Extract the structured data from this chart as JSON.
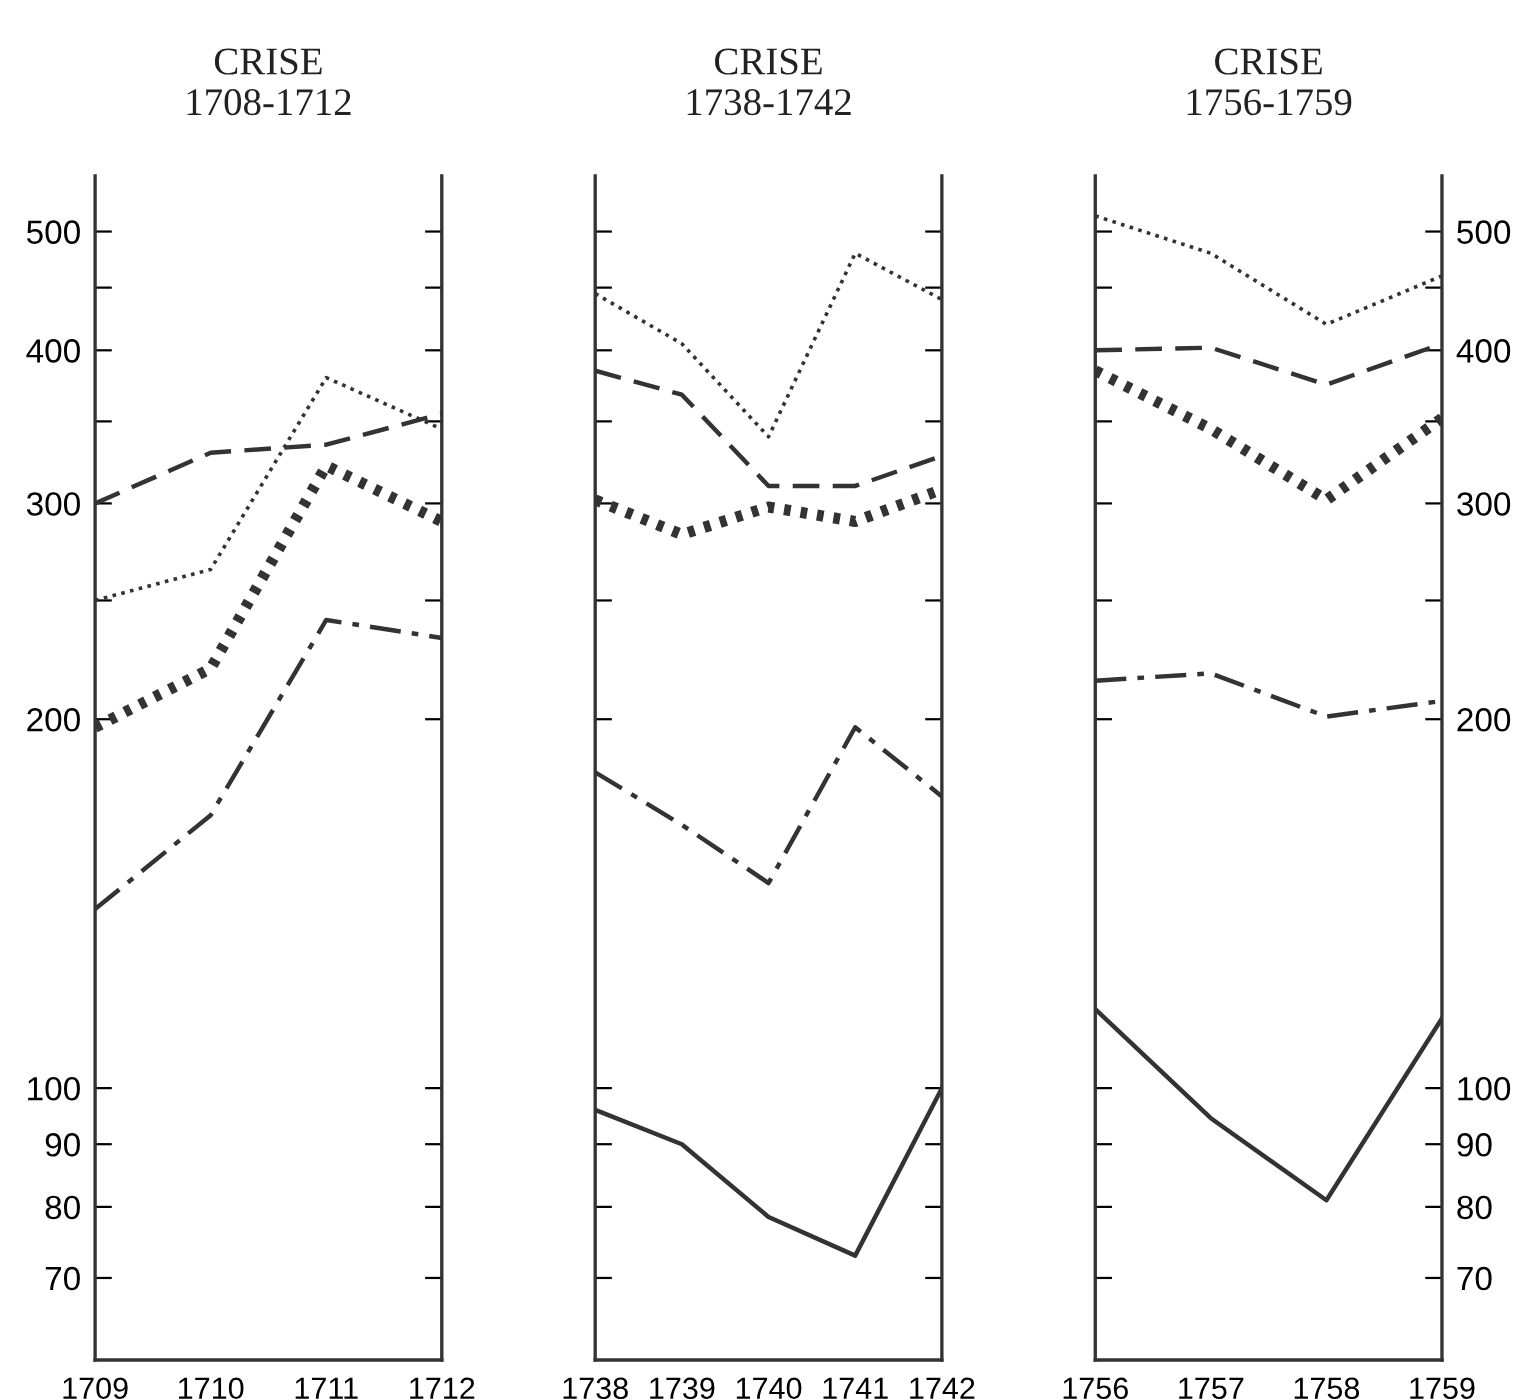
{
  "chart_data": [
    {
      "type": "line",
      "title": "CRISE\n1708-1712",
      "log": "y",
      "grid": false,
      "marker": "none",
      "x": [
        1709,
        1710,
        1711,
        1712
      ],
      "xlim": [
        1709,
        1712
      ],
      "xticks": [
        1709,
        1710,
        1711,
        1712
      ],
      "ylim": [
        60,
        555
      ],
      "yticks": [
        70,
        80,
        90,
        100,
        200,
        {
          "value": 250,
          "label": null
        },
        300,
        {
          "value": 350,
          "label": null
        },
        400,
        {
          "value": 450,
          "label": null
        },
        500
      ],
      "series": [
        {
          "color": "#333333",
          "line_style": "dotted",
          "values": [
            250,
            265,
            380,
            345
          ]
        },
        {
          "color": "#333333",
          "line_style": "dashed",
          "values": [
            300,
            330,
            335,
            355
          ]
        },
        {
          "color": "#333333",
          "line_style": "heavy dotted",
          "values": [
            197,
            220,
            322,
            290
          ]
        },
        {
          "color": "#333333",
          "line_style": "dashdot",
          "values": [
            140,
            167,
            241,
            233
          ]
        }
      ]
    },
    {
      "type": "line",
      "title": "CRISE\n1738-1742",
      "log": "y",
      "grid": false,
      "marker": "none",
      "tick_labels": "x",
      "x": [
        1738,
        1739,
        1740,
        1741,
        1742
      ],
      "xlim": [
        1738,
        1742
      ],
      "xticks": [
        1738,
        1739,
        1740,
        1741,
        1742
      ],
      "ylim": [
        60,
        555
      ],
      "yticks": [
        70,
        80,
        90,
        100,
        200,
        250,
        300,
        350,
        400,
        450,
        500
      ],
      "series": [
        {
          "color": "#333333",
          "line_style": "dotted",
          "values": [
            445,
            405,
            340,
            480,
            440
          ]
        },
        {
          "color": "#333333",
          "line_style": "dashed",
          "values": [
            385,
            368,
            310,
            310,
            328
          ]
        },
        {
          "color": "#333333",
          "line_style": "heavy dotted",
          "values": [
            302,
            283,
            298,
            290,
            308
          ]
        },
        {
          "color": "#333333",
          "line_style": "dashdot",
          "values": [
            181,
            164,
            147,
            197,
            173
          ]
        },
        {
          "color": "#333333",
          "line_style": "solid",
          "values": [
            96,
            90,
            78.5,
            73,
            100
          ]
        }
      ]
    },
    {
      "type": "line",
      "title": "CRISE\n1756-1759",
      "log": "y2",
      "grid": false,
      "marker": "none",
      "x": [
        1756,
        1757,
        1758,
        1759
      ],
      "xlim": [
        1756,
        1759
      ],
      "xticks": [
        1756,
        1757,
        1758,
        1759
      ],
      "y2lim": [
        60,
        555
      ],
      "y2ticks": [
        70,
        80,
        90,
        100,
        200,
        {
          "value": 250,
          "label": null
        },
        300,
        {
          "value": 350,
          "label": null
        },
        400,
        {
          "value": 450,
          "label": null
        },
        500
      ],
      "series": [
        {
          "color": "#333333",
          "line_style": "dotted",
          "axis": "y2",
          "values": [
            515,
            480,
            420,
            460
          ]
        },
        {
          "color": "#333333",
          "line_style": "dashed",
          "axis": "y2",
          "values": [
            400,
            402,
            375,
            405
          ]
        },
        {
          "color": "#333333",
          "line_style": "heavy dotted",
          "axis": "y2",
          "values": [
            385,
            345,
            302,
            352
          ]
        },
        {
          "color": "#333333",
          "line_style": "dashdot",
          "axis": "y2",
          "values": [
            215,
            218,
            201,
            207
          ]
        },
        {
          "color": "#333333",
          "line_style": "solid",
          "axis": "y2",
          "values": [
            116,
            94.5,
            81,
            114
          ]
        }
      ]
    }
  ]
}
